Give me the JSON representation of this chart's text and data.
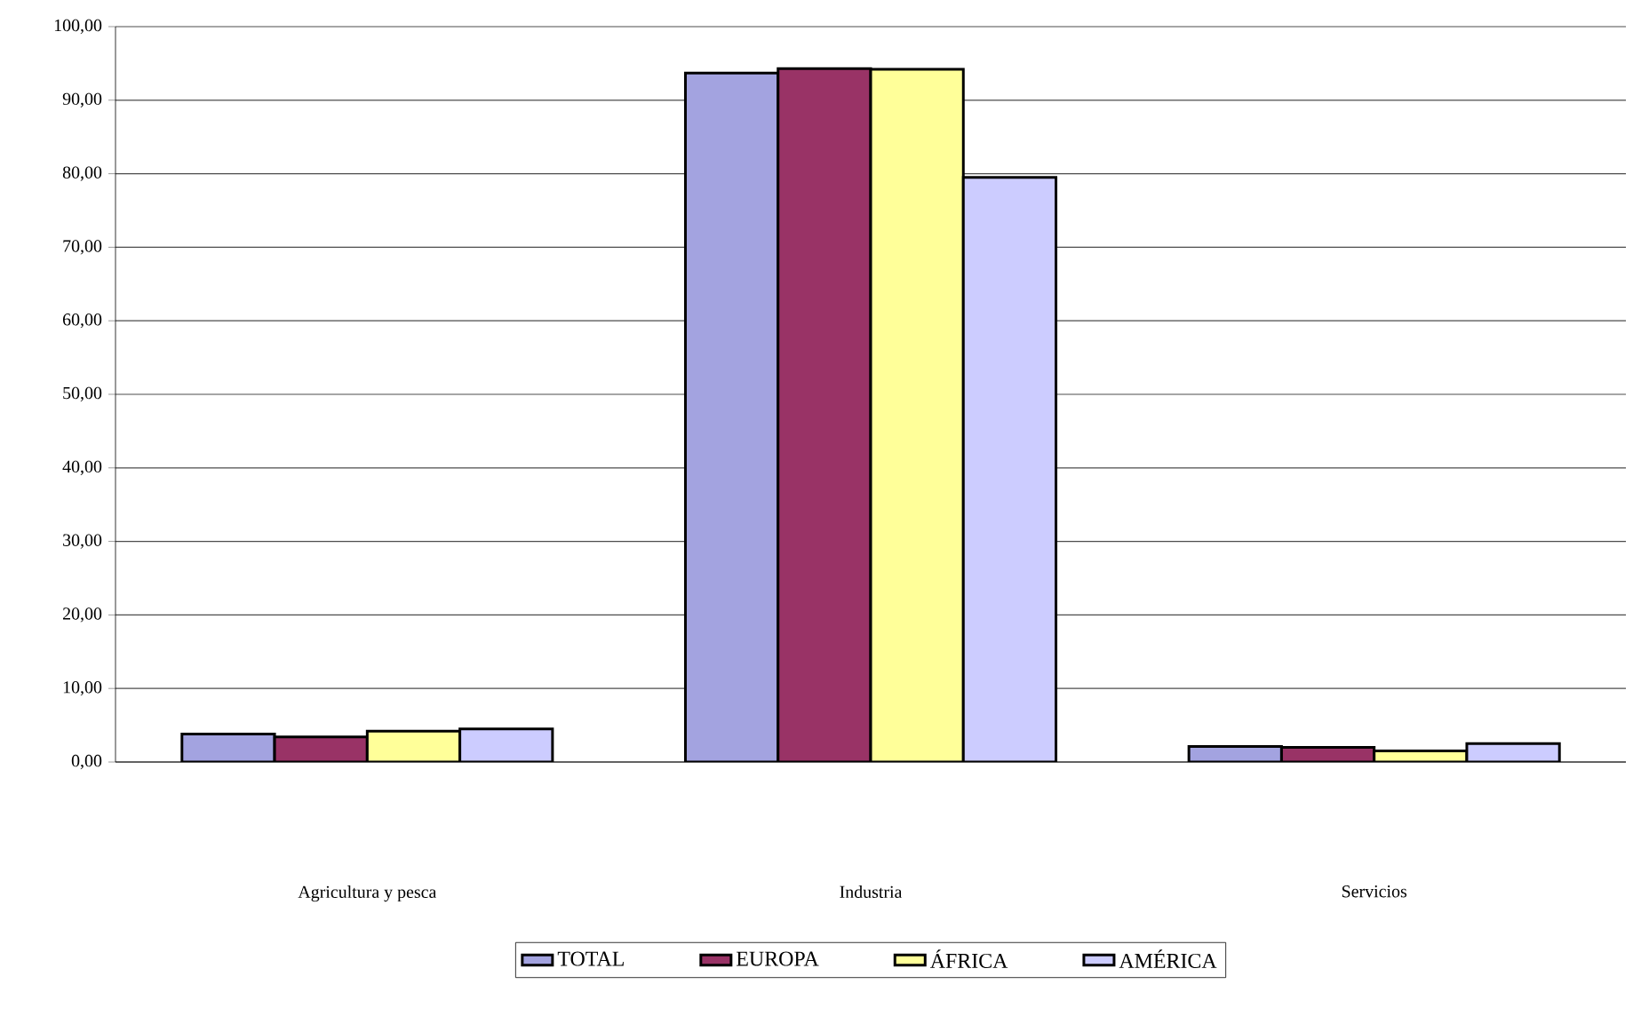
{
  "chart_data": {
    "type": "bar",
    "categories": [
      "Agricultura y pesca",
      "Industria",
      "Servicios"
    ],
    "series": [
      {
        "name": "TOTAL",
        "color": "#a3a3e0",
        "values": [
          3.8,
          93.7,
          2.1
        ]
      },
      {
        "name": "EUROPA",
        "color": "#993366",
        "values": [
          3.4,
          94.3,
          2.0
        ]
      },
      {
        "name": "ÁFRICA",
        "color": "#ffff99",
        "values": [
          4.2,
          94.2,
          1.5
        ]
      },
      {
        "name": "AMÉRICA",
        "color": "#ccccff",
        "values": [
          4.5,
          79.5,
          2.5
        ]
      }
    ],
    "ylim": [
      0,
      100
    ],
    "yticks": [
      {
        "value": 0,
        "label": "0,00"
      },
      {
        "value": 10,
        "label": "10,00"
      },
      {
        "value": 20,
        "label": "20,00"
      },
      {
        "value": 30,
        "label": "30,00"
      },
      {
        "value": 40,
        "label": "40,00"
      },
      {
        "value": 50,
        "label": "50,00"
      },
      {
        "value": 60,
        "label": "60,00"
      },
      {
        "value": 70,
        "label": "70,00"
      },
      {
        "value": 80,
        "label": "80,00"
      },
      {
        "value": 90,
        "label": "90,00"
      },
      {
        "value": 100,
        "label": "100,00"
      }
    ],
    "grid": "y",
    "legend": "bottom"
  }
}
